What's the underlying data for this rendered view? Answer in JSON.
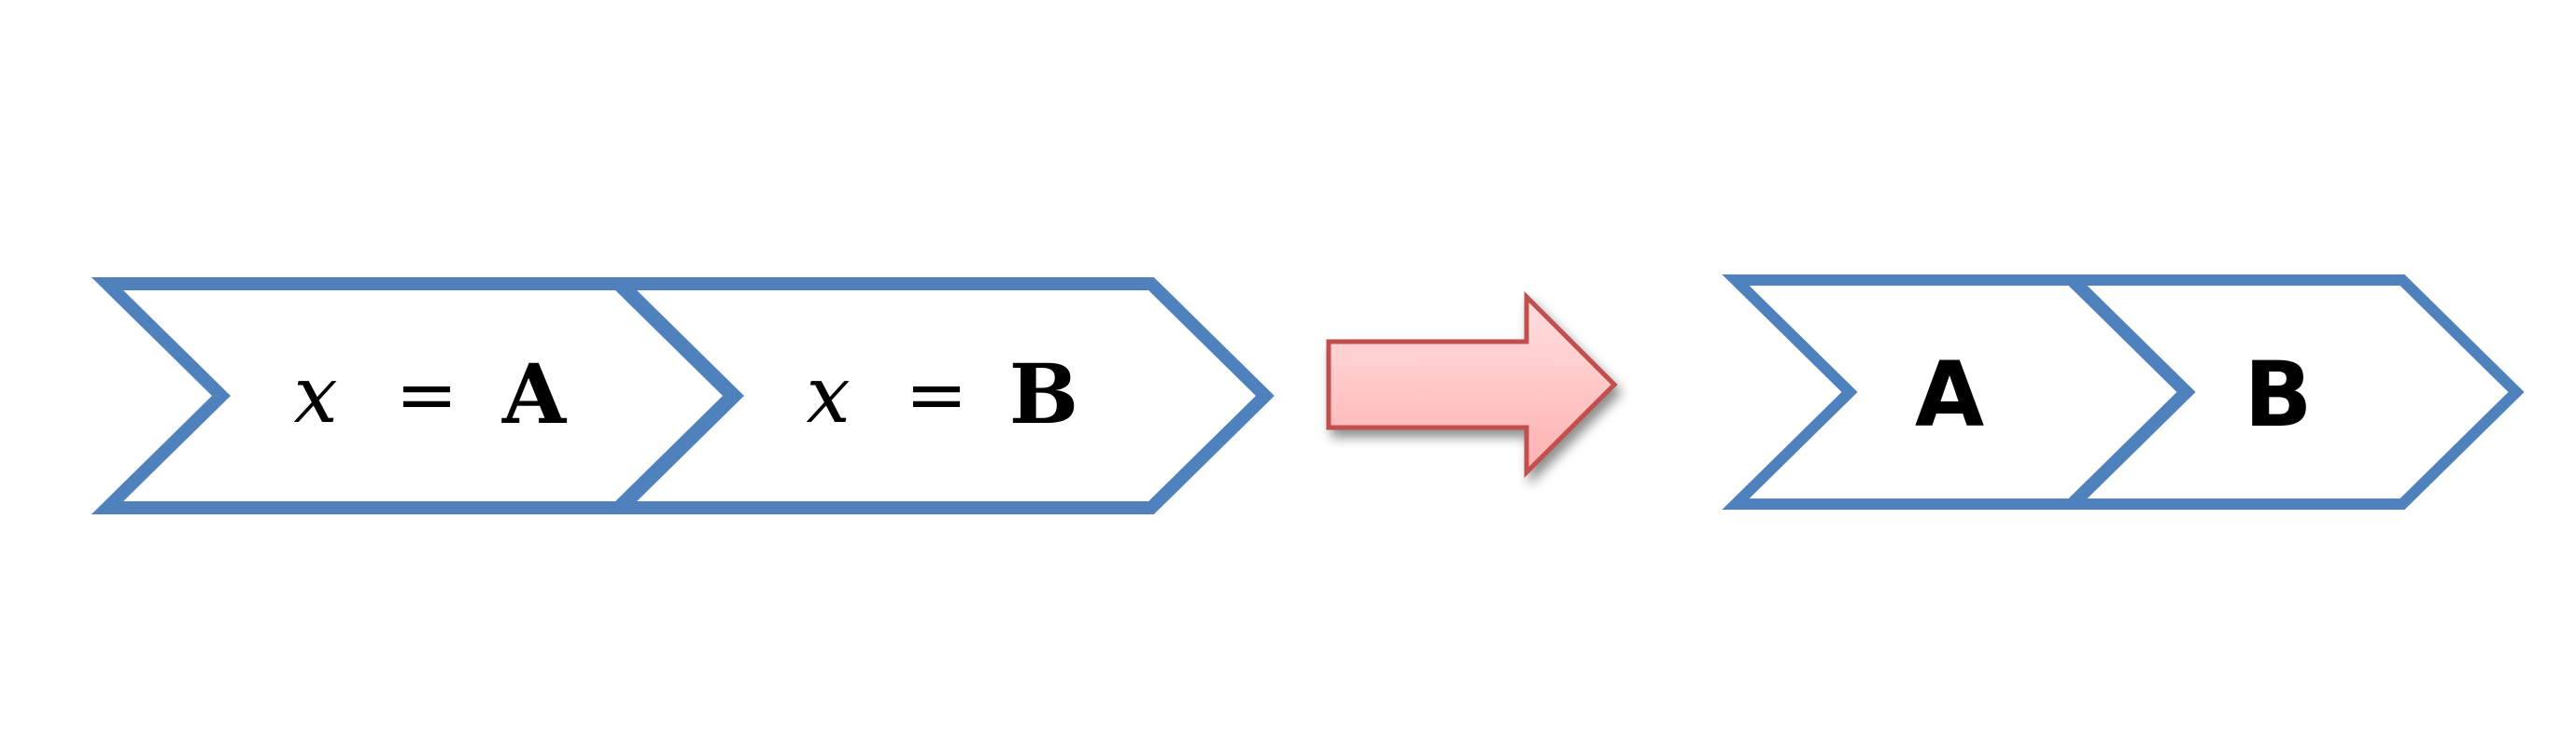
{
  "colors": {
    "chevron_stroke": "#4f81bd",
    "chevron_fill": "#ffffff",
    "arrow_stroke": "#c0504d",
    "arrow_fill_top": "#ffd8d8",
    "arrow_fill_bottom": "#ffb3b3",
    "text": "#000000"
  },
  "left_group": {
    "chevrons": [
      {
        "variable": "x",
        "operator": "=",
        "value": "A"
      },
      {
        "variable": "x",
        "operator": "=",
        "value": "B"
      }
    ]
  },
  "transform_arrow": {
    "icon": "right-arrow-icon"
  },
  "right_group": {
    "chevrons": [
      {
        "value": "A"
      },
      {
        "value": "B"
      }
    ]
  }
}
